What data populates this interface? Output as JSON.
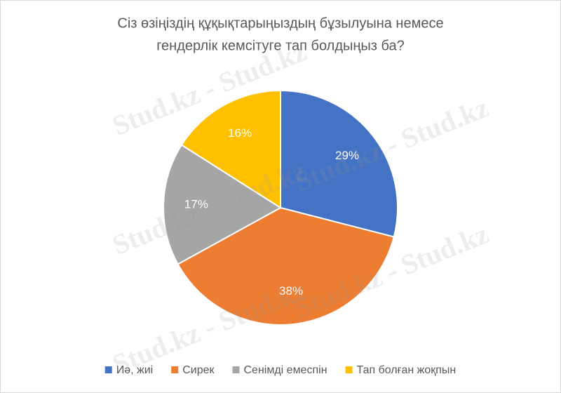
{
  "chart_data": {
    "type": "pie",
    "title": [
      "Сіз өзіңіздің құқықтарыңыздың  бұзылуына немесе",
      "гендерлік кемсітуге тап болдыңыз ба?"
    ],
    "categories": [
      "Иә, жиі",
      "Сирек",
      "Сенімді емеспін",
      "Тап болған жоқпын"
    ],
    "values": [
      29,
      38,
      17,
      16
    ],
    "value_labels": [
      "29%",
      "38%",
      "17%",
      "16%"
    ],
    "colors": [
      "#4472c4",
      "#ed7d31",
      "#a5a5a5",
      "#ffc000"
    ],
    "legend": "bottom",
    "watermark": "Stud.kz - Stud.kz"
  }
}
